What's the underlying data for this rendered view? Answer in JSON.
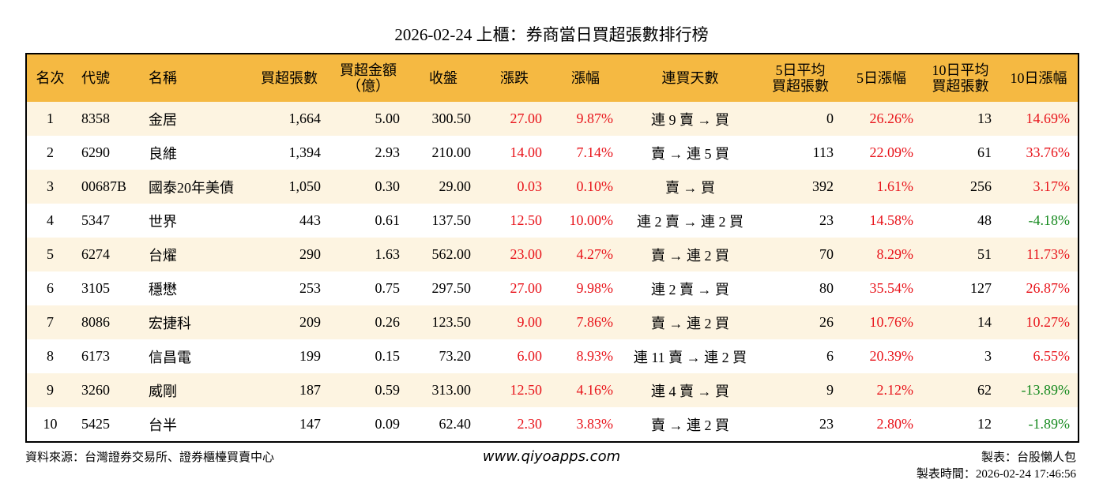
{
  "header": {
    "title": "2026-02-24 上櫃：券商當日買超張數排行榜"
  },
  "table": {
    "columns": [
      [
        "名次"
      ],
      [
        "代號"
      ],
      [
        "名稱"
      ],
      [
        "買超張數"
      ],
      [
        "買超金額",
        "（億）"
      ],
      [
        "收盤"
      ],
      [
        "漲跌"
      ],
      [
        "漲幅"
      ],
      [
        "連買天數"
      ],
      [
        "5日平均",
        "買超張數"
      ],
      [
        "5日漲幅"
      ],
      [
        "10日平均",
        "買超張數"
      ],
      [
        "10日漲幅"
      ]
    ],
    "rows": [
      [
        "1",
        "8358",
        "金居",
        "1,664",
        "5.00",
        "300.50",
        "27.00",
        "9.87%",
        "連 9 賣 → 買",
        "0",
        "26.26%",
        "13",
        "14.69%"
      ],
      [
        "2",
        "6290",
        "良維",
        "1,394",
        "2.93",
        "210.00",
        "14.00",
        "7.14%",
        "賣 → 連 5 買",
        "113",
        "22.09%",
        "61",
        "33.76%"
      ],
      [
        "3",
        "00687B",
        "國泰20年美債",
        "1,050",
        "0.30",
        "29.00",
        "0.03",
        "0.10%",
        "賣 → 買",
        "392",
        "1.61%",
        "256",
        "3.17%"
      ],
      [
        "4",
        "5347",
        "世界",
        "443",
        "0.61",
        "137.50",
        "12.50",
        "10.00%",
        "連 2 賣 → 連 2 買",
        "23",
        "14.58%",
        "48",
        "-4.18%"
      ],
      [
        "5",
        "6274",
        "台燿",
        "290",
        "1.63",
        "562.00",
        "23.00",
        "4.27%",
        "賣 → 連 2 買",
        "70",
        "8.29%",
        "51",
        "11.73%"
      ],
      [
        "6",
        "3105",
        "穩懋",
        "253",
        "0.75",
        "297.50",
        "27.00",
        "9.98%",
        "連 2 賣 → 買",
        "80",
        "35.54%",
        "127",
        "26.87%"
      ],
      [
        "7",
        "8086",
        "宏捷科",
        "209",
        "0.26",
        "123.50",
        "9.00",
        "7.86%",
        "賣 → 連 2 買",
        "26",
        "10.76%",
        "14",
        "10.27%"
      ],
      [
        "8",
        "6173",
        "信昌電",
        "199",
        "0.15",
        "73.20",
        "6.00",
        "8.93%",
        "連 11 賣 → 連 2 買",
        "6",
        "20.39%",
        "3",
        "6.55%"
      ],
      [
        "9",
        "3260",
        "威剛",
        "187",
        "0.59",
        "313.00",
        "12.50",
        "4.16%",
        "連 4 賣 → 買",
        "9",
        "2.12%",
        "62",
        "-13.89%"
      ],
      [
        "10",
        "5425",
        "台半",
        "147",
        "0.09",
        "62.40",
        "2.30",
        "3.83%",
        "賣 → 連 2 買",
        "23",
        "2.80%",
        "12",
        "-1.89%"
      ]
    ]
  },
  "footer": {
    "source": "資料來源：台灣證券交易所、證券櫃檯買賣中心",
    "website": "www.qiyoapps.com",
    "author": "製表：台股懶人包",
    "time": "製表時間：2026-02-24 17:46:56"
  }
}
